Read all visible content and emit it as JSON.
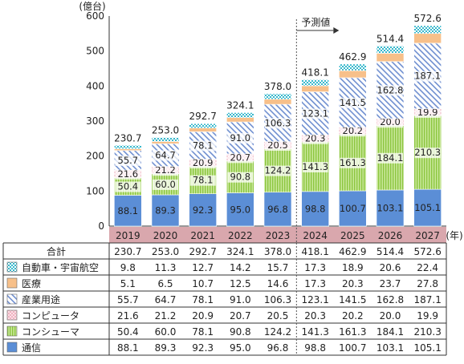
{
  "chart_data": {
    "type": "bar",
    "stacked": true,
    "y_unit": "(億台)",
    "x_unit": "(年)",
    "forecast_label": "予測値",
    "forecast_from": "2024",
    "ylim": [
      0,
      600
    ],
    "yticks": [
      "0",
      "100",
      "200",
      "300",
      "400",
      "500",
      "600"
    ],
    "categories": [
      "2019",
      "2020",
      "2021",
      "2022",
      "2023",
      "2024",
      "2025",
      "2026",
      "2027"
    ],
    "totals_label": "合計",
    "totals": [
      "230.7",
      "253.0",
      "292.7",
      "324.1",
      "378.0",
      "418.1",
      "462.9",
      "514.4",
      "572.6"
    ],
    "series": [
      {
        "key": "comm",
        "name": "通信",
        "color": "#5b8ed6",
        "values": [
          88.1,
          89.3,
          92.3,
          95.0,
          96.8,
          98.8,
          100.7,
          103.1,
          105.1
        ],
        "labels": [
          "88.1",
          "89.3",
          "92.3",
          "95.0",
          "96.8",
          "98.8",
          "100.7",
          "103.1",
          "105.1"
        ]
      },
      {
        "key": "consumer",
        "name": "コンシューマ",
        "color": "#a8d45a",
        "values": [
          50.4,
          60.0,
          78.1,
          90.8,
          124.2,
          141.3,
          161.3,
          184.1,
          210.3
        ],
        "labels": [
          "50.4",
          "60.0",
          "78.1",
          "90.8",
          "124.2",
          "141.3",
          "161.3",
          "184.1",
          "210.3"
        ]
      },
      {
        "key": "computer",
        "name": "コンピュータ",
        "color": "#f4a8b6",
        "values": [
          21.6,
          21.2,
          20.9,
          20.7,
          20.5,
          20.3,
          20.2,
          20.0,
          19.9
        ],
        "labels": [
          "21.6",
          "21.2",
          "20.9",
          "20.7",
          "20.5",
          "20.3",
          "20.2",
          "20.0",
          "19.9"
        ]
      },
      {
        "key": "industry",
        "name": "産業用途",
        "color": "#7f9fd6",
        "values": [
          55.7,
          64.7,
          78.1,
          91.0,
          106.3,
          123.1,
          141.5,
          162.8,
          187.1
        ],
        "labels": [
          "55.7",
          "64.7",
          "78.1",
          "91.0",
          "106.3",
          "123.1",
          "141.5",
          "162.8",
          "187.1"
        ]
      },
      {
        "key": "medical",
        "name": "医療",
        "color": "#f7c08a",
        "values": [
          5.1,
          6.5,
          10.7,
          12.5,
          14.6,
          17.3,
          20.3,
          23.7,
          27.8
        ],
        "labels": [
          "5.1",
          "6.5",
          "10.7",
          "12.5",
          "14.6",
          "17.3",
          "20.3",
          "23.7",
          "27.8"
        ]
      },
      {
        "key": "auto",
        "name": "自動車・宇宙航空",
        "color": "#5cc8d6",
        "values": [
          9.8,
          11.3,
          12.7,
          14.2,
          15.7,
          17.3,
          18.9,
          20.6,
          22.4
        ],
        "labels": [
          "9.8",
          "11.3",
          "12.7",
          "14.2",
          "15.7",
          "17.3",
          "18.9",
          "20.6",
          "22.4"
        ]
      }
    ],
    "table_row_order": [
      "auto",
      "medical",
      "industry",
      "computer",
      "consumer",
      "comm"
    ]
  }
}
